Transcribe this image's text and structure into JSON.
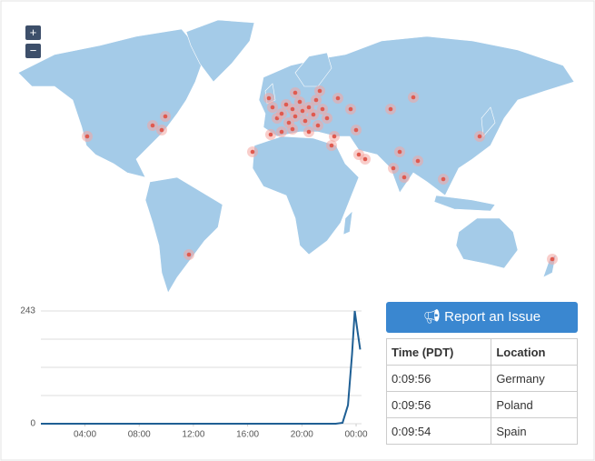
{
  "map": {
    "zoom_in": "+",
    "zoom_out": "−"
  },
  "chart_data": {
    "type": "line",
    "x": [
      0.75,
      22.5,
      23.0,
      23.4,
      23.7,
      23.9,
      24.1,
      24.3
    ],
    "series": [
      {
        "color": "#1f5f94",
        "values": [
          0,
          0,
          2,
          40,
          150,
          243,
          200,
          160
        ]
      }
    ],
    "xlim": [
      0.75,
      24.4
    ],
    "xticks": [
      {
        "value": 4,
        "label": "04:00"
      },
      {
        "value": 8,
        "label": "08:00"
      },
      {
        "value": 12,
        "label": "12:00"
      },
      {
        "value": 16,
        "label": "16:00"
      },
      {
        "value": 20,
        "label": "20:00"
      },
      {
        "value": 24,
        "label": "00:00"
      }
    ],
    "ylim": [
      0,
      243
    ],
    "yticks": [
      0,
      243
    ],
    "grid": true
  },
  "button": {
    "label": "Report an Issue"
  },
  "table": {
    "header": [
      "Time (PDT)",
      "Location"
    ],
    "rows": [
      [
        "0:09:56",
        "Germany"
      ],
      [
        "0:09:56",
        "Poland"
      ],
      [
        "0:09:54",
        "Spain"
      ]
    ]
  }
}
